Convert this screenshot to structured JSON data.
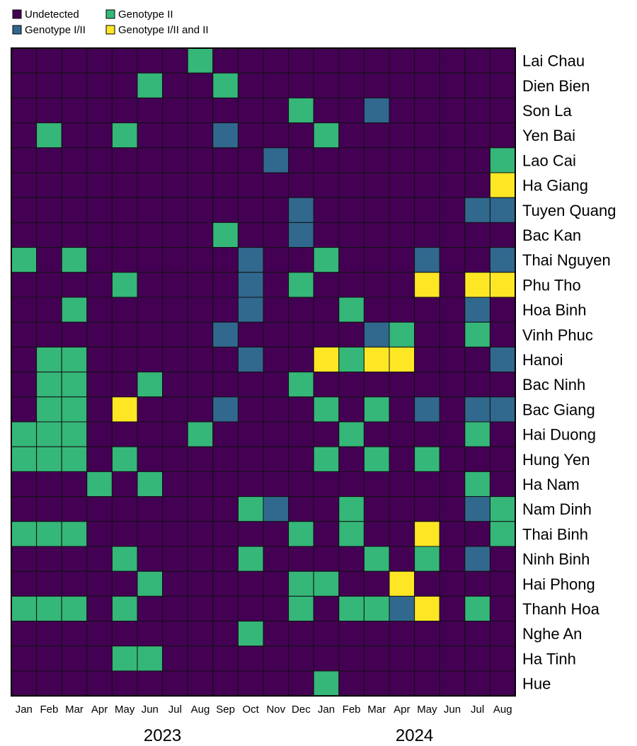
{
  "chart_data": {
    "type": "heatmap",
    "legend": {
      "placement": "top-left",
      "entries": [
        {
          "label": "Undetected",
          "code": 0
        },
        {
          "label": "Genotype II",
          "code": 1
        },
        {
          "label": "Genotype I/II",
          "code": 2
        },
        {
          "label": "Genotype I/II and II",
          "code": 3
        }
      ]
    },
    "colors": {
      "0": "#440154",
      "1": "#35b779",
      "2": "#31688e",
      "3": "#fde725",
      "grid": "#111111"
    },
    "months": [
      "Jan",
      "Feb",
      "Mar",
      "Apr",
      "May",
      "Jun",
      "Jul",
      "Aug",
      "Sep",
      "Oct",
      "Nov",
      "Dec",
      "Jan",
      "Feb",
      "Mar",
      "Apr",
      "May",
      "Jun",
      "Jul",
      "Aug"
    ],
    "years": [
      {
        "label": "2023",
        "start": 0,
        "end": 11
      },
      {
        "label": "2024",
        "start": 12,
        "end": 19
      }
    ],
    "provinces": [
      "Lai Chau",
      "Dien Bien",
      "Son La",
      "Yen Bai",
      "Lao Cai",
      "Ha Giang",
      "Tuyen Quang",
      "Bac Kan",
      "Thai Nguyen",
      "Phu Tho",
      "Hoa Binh",
      "Vinh Phuc",
      "Hanoi",
      "Bac Ninh",
      "Bac Giang",
      "Hai Duong",
      "Hung Yen",
      "Ha Nam",
      "Nam Dinh",
      "Thai Binh",
      "Ninh Binh",
      "Hai Phong",
      "Thanh Hoa",
      "Nghe An",
      "Ha Tinh",
      "Hue"
    ],
    "values": [
      [
        0,
        0,
        0,
        0,
        0,
        0,
        0,
        1,
        0,
        0,
        0,
        0,
        0,
        0,
        0,
        0,
        0,
        0,
        0,
        0
      ],
      [
        0,
        0,
        0,
        0,
        0,
        1,
        0,
        0,
        1,
        0,
        0,
        0,
        0,
        0,
        0,
        0,
        0,
        0,
        0,
        0
      ],
      [
        0,
        0,
        0,
        0,
        0,
        0,
        0,
        0,
        0,
        0,
        0,
        1,
        0,
        0,
        2,
        0,
        0,
        0,
        0,
        0
      ],
      [
        0,
        1,
        0,
        0,
        1,
        0,
        0,
        0,
        2,
        0,
        0,
        0,
        1,
        0,
        0,
        0,
        0,
        0,
        0,
        0
      ],
      [
        0,
        0,
        0,
        0,
        0,
        0,
        0,
        0,
        0,
        0,
        2,
        0,
        0,
        0,
        0,
        0,
        0,
        0,
        0,
        1
      ],
      [
        0,
        0,
        0,
        0,
        0,
        0,
        0,
        0,
        0,
        0,
        0,
        0,
        0,
        0,
        0,
        0,
        0,
        0,
        0,
        3
      ],
      [
        0,
        0,
        0,
        0,
        0,
        0,
        0,
        0,
        0,
        0,
        0,
        2,
        0,
        0,
        0,
        0,
        0,
        0,
        2,
        2
      ],
      [
        0,
        0,
        0,
        0,
        0,
        0,
        0,
        0,
        1,
        0,
        0,
        2,
        0,
        0,
        0,
        0,
        0,
        0,
        0,
        0
      ],
      [
        1,
        0,
        1,
        0,
        0,
        0,
        0,
        0,
        0,
        2,
        0,
        0,
        1,
        0,
        0,
        0,
        2,
        0,
        0,
        2
      ],
      [
        0,
        0,
        0,
        0,
        1,
        0,
        0,
        0,
        0,
        2,
        0,
        1,
        0,
        0,
        0,
        0,
        3,
        0,
        3,
        3
      ],
      [
        0,
        0,
        1,
        0,
        0,
        0,
        0,
        0,
        0,
        2,
        0,
        0,
        0,
        1,
        0,
        0,
        0,
        0,
        2,
        0
      ],
      [
        0,
        0,
        0,
        0,
        0,
        0,
        0,
        0,
        2,
        0,
        0,
        0,
        0,
        0,
        2,
        1,
        0,
        0,
        1,
        0
      ],
      [
        0,
        1,
        1,
        0,
        0,
        0,
        0,
        0,
        0,
        2,
        0,
        0,
        3,
        1,
        3,
        3,
        0,
        0,
        0,
        2
      ],
      [
        0,
        1,
        1,
        0,
        0,
        1,
        0,
        0,
        0,
        0,
        0,
        1,
        0,
        0,
        0,
        0,
        0,
        0,
        0,
        0
      ],
      [
        0,
        1,
        1,
        0,
        3,
        0,
        0,
        0,
        2,
        0,
        0,
        0,
        1,
        0,
        1,
        0,
        2,
        0,
        2,
        2
      ],
      [
        1,
        1,
        1,
        0,
        0,
        0,
        0,
        1,
        0,
        0,
        0,
        0,
        0,
        1,
        0,
        0,
        0,
        0,
        1,
        0
      ],
      [
        1,
        1,
        1,
        0,
        1,
        0,
        0,
        0,
        0,
        0,
        0,
        0,
        1,
        0,
        1,
        0,
        1,
        0,
        0,
        0
      ],
      [
        0,
        0,
        0,
        1,
        0,
        1,
        0,
        0,
        0,
        0,
        0,
        0,
        0,
        0,
        0,
        0,
        0,
        0,
        1,
        0
      ],
      [
        0,
        0,
        0,
        0,
        0,
        0,
        0,
        0,
        0,
        1,
        2,
        0,
        0,
        1,
        0,
        0,
        0,
        0,
        2,
        1
      ],
      [
        1,
        1,
        1,
        0,
        0,
        0,
        0,
        0,
        0,
        0,
        0,
        1,
        0,
        1,
        0,
        0,
        3,
        0,
        0,
        1
      ],
      [
        0,
        0,
        0,
        0,
        1,
        0,
        0,
        0,
        0,
        1,
        0,
        0,
        0,
        0,
        1,
        0,
        1,
        0,
        2,
        0
      ],
      [
        0,
        0,
        0,
        0,
        0,
        1,
        0,
        0,
        0,
        0,
        0,
        1,
        1,
        0,
        0,
        3,
        0,
        0,
        0,
        0
      ],
      [
        1,
        1,
        1,
        0,
        1,
        0,
        0,
        0,
        0,
        0,
        0,
        1,
        0,
        1,
        1,
        2,
        3,
        0,
        1,
        0
      ],
      [
        0,
        0,
        0,
        0,
        0,
        0,
        0,
        0,
        0,
        1,
        0,
        0,
        0,
        0,
        0,
        0,
        0,
        0,
        0,
        0
      ],
      [
        0,
        0,
        0,
        0,
        1,
        1,
        0,
        0,
        0,
        0,
        0,
        0,
        0,
        0,
        0,
        0,
        0,
        0,
        0,
        0
      ],
      [
        0,
        0,
        0,
        0,
        0,
        0,
        0,
        0,
        0,
        0,
        0,
        0,
        1,
        0,
        0,
        0,
        0,
        0,
        0,
        0
      ]
    ]
  }
}
